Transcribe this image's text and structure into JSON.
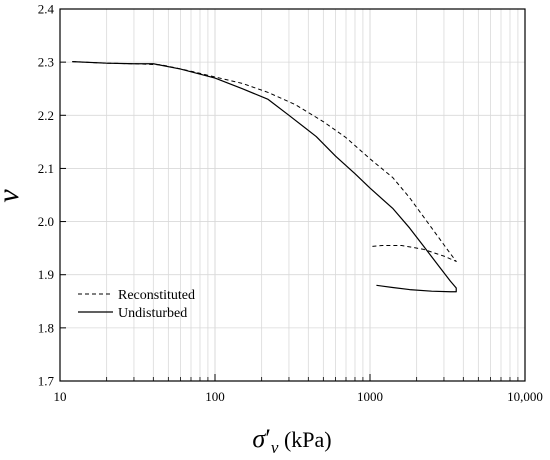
{
  "chart_data": {
    "type": "line",
    "x_scale": "log",
    "xlim": [
      10,
      10000
    ],
    "ylim": [
      1.7,
      2.4
    ],
    "grid": true,
    "legend_position": "bottom-left",
    "x_ticks": [
      {
        "value": 10,
        "label": "10"
      },
      {
        "value": 100,
        "label": "100"
      },
      {
        "value": 1000,
        "label": "1000"
      },
      {
        "value": 10000,
        "label": "10,000"
      }
    ],
    "y_ticks": [
      {
        "value": 1.7,
        "label": "1.7"
      },
      {
        "value": 1.8,
        "label": "1.8"
      },
      {
        "value": 1.9,
        "label": "1.9"
      },
      {
        "value": 2.0,
        "label": "2.0"
      },
      {
        "value": 2.1,
        "label": "2.1"
      },
      {
        "value": 2.2,
        "label": "2.2"
      },
      {
        "value": 2.3,
        "label": "2.3"
      },
      {
        "value": 2.4,
        "label": "2.4"
      }
    ],
    "xlabel": {
      "sigma": "σ",
      "prime": "′",
      "sub": "v",
      "unit": " (kPa)"
    },
    "ylabel": "ν",
    "series": [
      {
        "name": "Reconstituted",
        "style": "dashed",
        "color": "#000000",
        "x": [
          12,
          20,
          30,
          45,
          70,
          100,
          150,
          220,
          330,
          500,
          700,
          1000,
          1400,
          1800,
          2500,
          3200,
          3600,
          3000,
          2200,
          1600,
          1200,
          1000
        ],
        "y": [
          2.301,
          2.298,
          2.297,
          2.295,
          2.283,
          2.272,
          2.26,
          2.243,
          2.22,
          2.188,
          2.158,
          2.118,
          2.083,
          2.045,
          1.988,
          1.945,
          1.925,
          1.935,
          1.948,
          1.955,
          1.955,
          1.953
        ]
      },
      {
        "name": "Undisturbed",
        "style": "solid",
        "color": "#000000",
        "x": [
          12,
          20,
          30,
          40,
          60,
          100,
          150,
          220,
          300,
          450,
          600,
          800,
          1000,
          1400,
          1800,
          2200,
          2800,
          3300,
          3600,
          3600,
          3300,
          2500,
          1800,
          1400,
          1100
        ],
        "y": [
          2.301,
          2.298,
          2.297,
          2.297,
          2.287,
          2.27,
          2.25,
          2.23,
          2.2,
          2.16,
          2.123,
          2.09,
          2.063,
          2.025,
          1.988,
          1.955,
          1.915,
          1.888,
          1.875,
          1.868,
          1.868,
          1.869,
          1.872,
          1.876,
          1.88
        ]
      }
    ]
  }
}
